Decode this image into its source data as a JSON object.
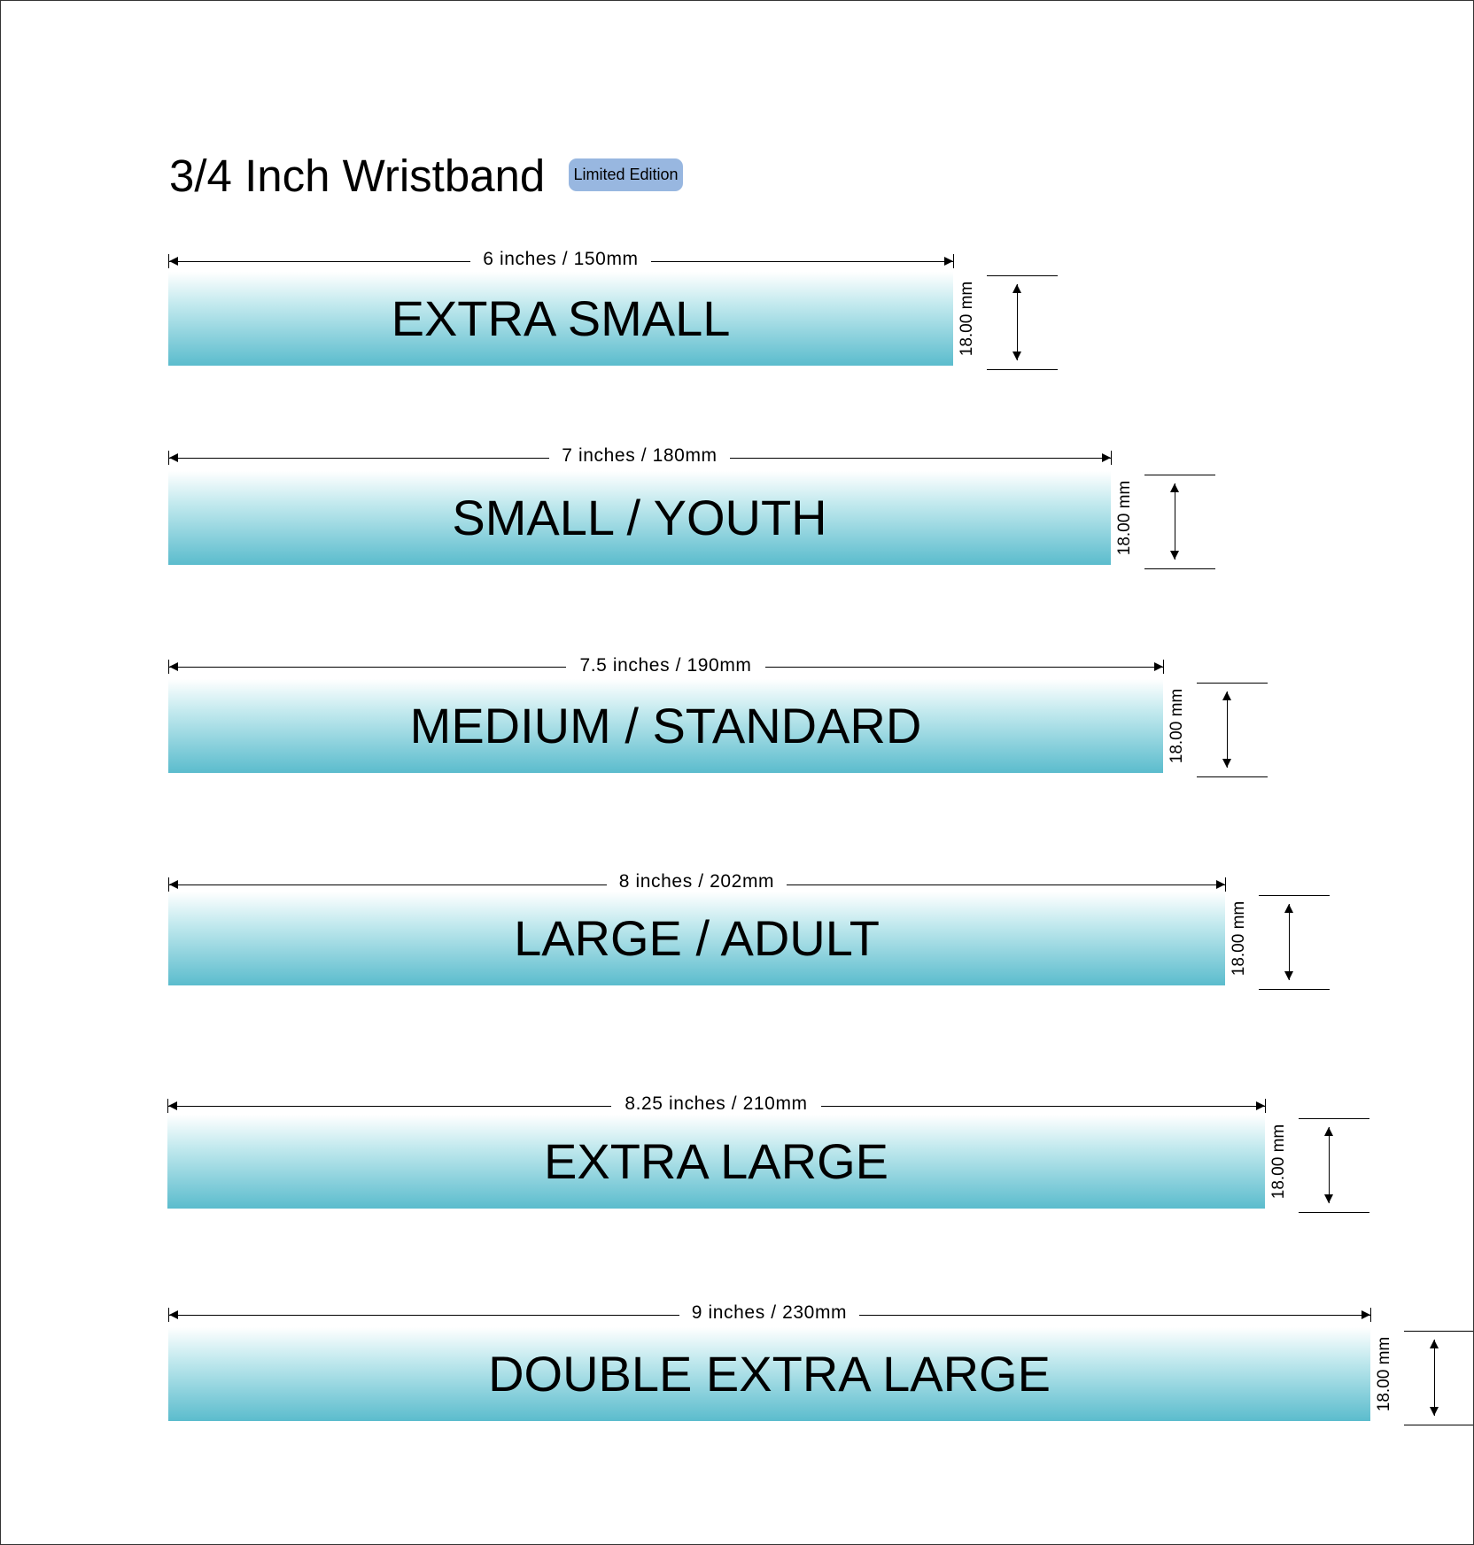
{
  "header": {
    "title": "3/4 Inch Wristband",
    "badge": "Limited Edition"
  },
  "colors": {
    "band_top": "#ffffff",
    "band_bottom": "#5bbccd",
    "badge": "#98b7e0"
  },
  "bands": [
    {
      "name": "EXTRA SMALL",
      "length_label": "6 inches / 150mm",
      "length_in": 6,
      "length_mm": 150,
      "height_label": "18.00 mm"
    },
    {
      "name": "SMALL / YOUTH",
      "length_label": "7 inches / 180mm",
      "length_in": 7,
      "length_mm": 180,
      "height_label": "18.00 mm"
    },
    {
      "name": "MEDIUM / STANDARD",
      "length_label": "7.5 inches / 190mm",
      "length_in": 7.5,
      "length_mm": 190,
      "height_label": "18.00 mm"
    },
    {
      "name": "LARGE / ADULT",
      "length_label": "8 inches / 202mm",
      "length_in": 8,
      "length_mm": 202,
      "height_label": "18.00 mm"
    },
    {
      "name": "EXTRA LARGE",
      "length_label": "8.25 inches / 210mm",
      "length_in": 8.25,
      "length_mm": 210,
      "height_label": "18.00 mm"
    },
    {
      "name": "DOUBLE EXTRA LARGE",
      "length_label": "9 inches / 230mm",
      "length_in": 9,
      "length_mm": 230,
      "height_label": "18.00 mm"
    }
  ]
}
